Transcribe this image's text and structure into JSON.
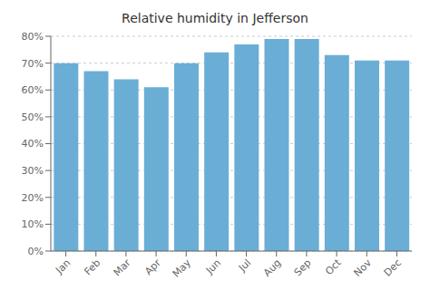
{
  "chart_data": {
    "type": "bar",
    "title": "Relative humidity in Jefferson",
    "categories": [
      "Jan",
      "Feb",
      "Mar",
      "Apr",
      "May",
      "Jun",
      "Jul",
      "Aug",
      "Sep",
      "Oct",
      "Nov",
      "Dec"
    ],
    "values": [
      70,
      67,
      64,
      61,
      70,
      74,
      77,
      79,
      79,
      73,
      71,
      71
    ],
    "color": "#6aaed6",
    "ylim": [
      0,
      80
    ],
    "yticks": [
      {
        "value": 0,
        "label": "0%"
      },
      {
        "value": 10,
        "label": "10%"
      },
      {
        "value": 20,
        "label": "20%"
      },
      {
        "value": 30,
        "label": "30%"
      },
      {
        "value": 40,
        "label": "40%"
      },
      {
        "value": 50,
        "label": "50%"
      },
      {
        "value": 60,
        "label": "60%"
      },
      {
        "value": 70,
        "label": "70%"
      },
      {
        "value": 80,
        "label": "80%"
      }
    ],
    "grid": true
  }
}
